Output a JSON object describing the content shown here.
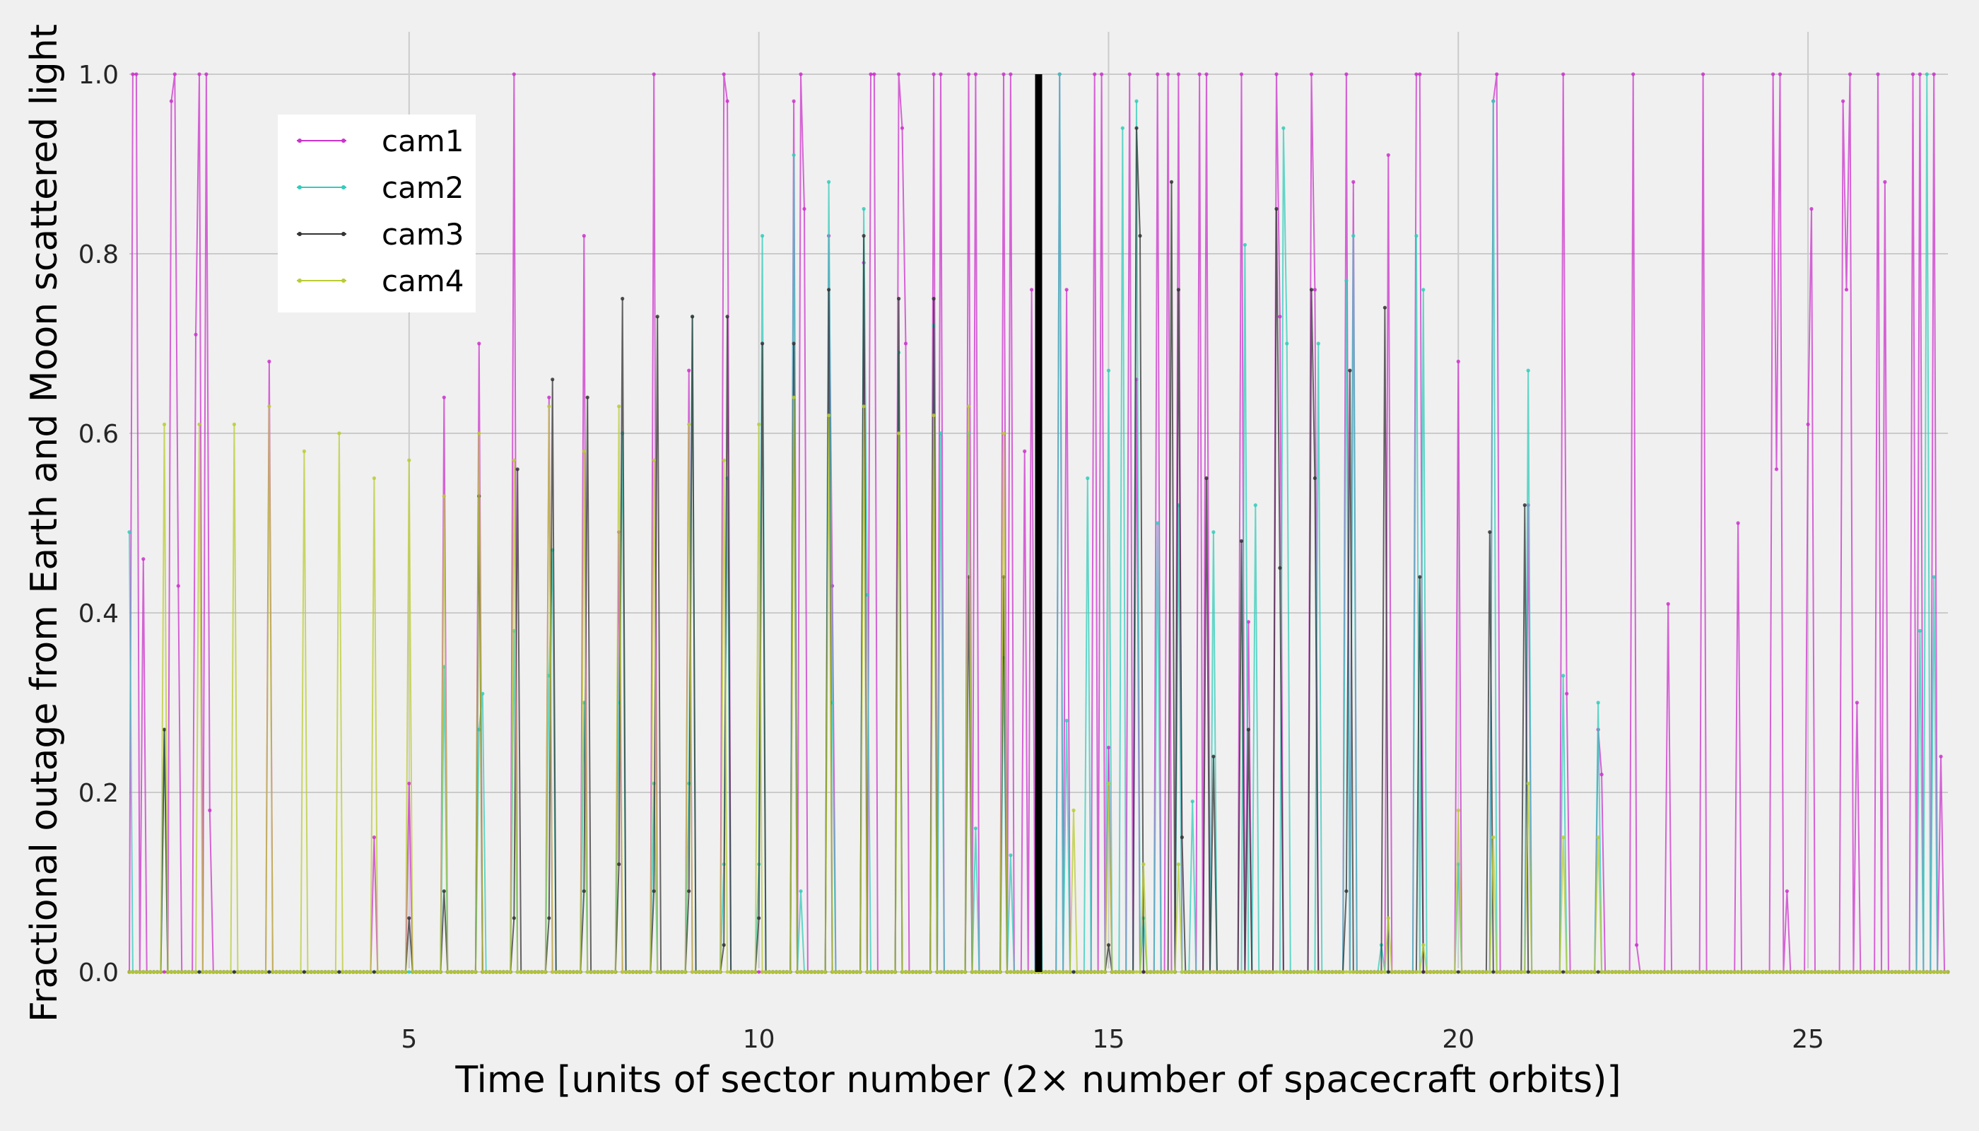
{
  "chart_data": {
    "type": "line",
    "xlabel": "Time [units of sector number (2× number of spacecraft orbits)]",
    "ylabel": "Fractional outage from Earth and Moon scattered light",
    "xlim": [
      1,
      27
    ],
    "ylim": [
      0,
      1
    ],
    "x_ticks": [
      5,
      10,
      15,
      20,
      25
    ],
    "y_ticks": [
      0.0,
      0.2,
      0.4,
      0.6,
      0.8,
      1.0
    ],
    "x_tick_labels": [
      "5",
      "10",
      "15",
      "20",
      "25"
    ],
    "y_tick_labels": [
      "0.0",
      "0.2",
      "0.4",
      "0.6",
      "0.8",
      "1.0"
    ],
    "grid": true,
    "legend_position": "upper-left",
    "annotation": {
      "type": "vertical_line",
      "x": 14,
      "color": "#000000"
    },
    "series": [
      {
        "name": "cam1",
        "color": "#cc33cc",
        "peaks": [
          [
            1.05,
            1.0
          ],
          [
            1.1,
            1.0
          ],
          [
            1.2,
            0.46
          ],
          [
            1.6,
            0.97
          ],
          [
            1.65,
            1.0
          ],
          [
            1.7,
            0.43
          ],
          [
            1.95,
            0.71
          ],
          [
            2.0,
            1.0
          ],
          [
            2.1,
            1.0
          ],
          [
            2.15,
            0.18
          ],
          [
            3.0,
            0.68
          ],
          [
            4.5,
            0.15
          ],
          [
            5.0,
            0.21
          ],
          [
            5.5,
            0.64
          ],
          [
            6.0,
            0.7
          ],
          [
            6.5,
            1.0
          ],
          [
            7.0,
            0.64
          ],
          [
            7.5,
            0.82
          ],
          [
            8.0,
            0.49
          ],
          [
            8.5,
            1.0
          ],
          [
            9.0,
            0.67
          ],
          [
            9.5,
            1.0
          ],
          [
            9.55,
            0.97
          ],
          [
            10.5,
            0.97
          ],
          [
            10.6,
            1.0
          ],
          [
            10.65,
            0.85
          ],
          [
            11.0,
            0.82
          ],
          [
            11.05,
            0.43
          ],
          [
            11.5,
            0.79
          ],
          [
            11.6,
            1.0
          ],
          [
            11.65,
            1.0
          ],
          [
            12.0,
            1.0
          ],
          [
            12.05,
            0.94
          ],
          [
            12.1,
            0.7
          ],
          [
            12.5,
            1.0
          ],
          [
            12.6,
            1.0
          ],
          [
            13.0,
            1.0
          ],
          [
            13.1,
            1.0
          ],
          [
            13.5,
            1.0
          ],
          [
            13.6,
            1.0
          ],
          [
            13.8,
            0.58
          ],
          [
            13.9,
            0.76
          ],
          [
            14.3,
            1.0
          ],
          [
            14.4,
            0.76
          ],
          [
            14.8,
            1.0
          ],
          [
            14.9,
            1.0
          ],
          [
            15.0,
            0.25
          ],
          [
            15.3,
            1.0
          ],
          [
            15.4,
            0.66
          ],
          [
            15.7,
            1.0
          ],
          [
            15.85,
            1.0
          ],
          [
            16.0,
            1.0
          ],
          [
            16.3,
            1.0
          ],
          [
            16.4,
            1.0
          ],
          [
            16.9,
            1.0
          ],
          [
            17.0,
            0.39
          ],
          [
            17.4,
            1.0
          ],
          [
            17.45,
            0.73
          ],
          [
            17.9,
            1.0
          ],
          [
            17.95,
            0.76
          ],
          [
            18.4,
            1.0
          ],
          [
            18.5,
            0.88
          ],
          [
            19.0,
            0.91
          ],
          [
            19.4,
            1.0
          ],
          [
            19.45,
            1.0
          ],
          [
            20.0,
            0.68
          ],
          [
            20.5,
            0.97
          ],
          [
            20.55,
            1.0
          ],
          [
            21.0,
            0.52
          ],
          [
            21.5,
            1.0
          ],
          [
            21.55,
            0.31
          ],
          [
            22.0,
            0.27
          ],
          [
            22.05,
            0.22
          ],
          [
            22.5,
            1.0
          ],
          [
            22.55,
            0.03
          ],
          [
            23.0,
            0.41
          ],
          [
            23.5,
            1.0
          ],
          [
            24.0,
            0.5
          ],
          [
            24.5,
            1.0
          ],
          [
            24.55,
            0.56
          ],
          [
            24.6,
            1.0
          ],
          [
            24.7,
            0.09
          ],
          [
            25.0,
            0.61
          ],
          [
            25.05,
            0.85
          ],
          [
            25.5,
            0.97
          ],
          [
            25.55,
            0.76
          ],
          [
            25.6,
            1.0
          ],
          [
            25.7,
            0.3
          ],
          [
            26.0,
            1.0
          ],
          [
            26.1,
            0.88
          ],
          [
            26.5,
            1.0
          ],
          [
            26.6,
            1.0
          ],
          [
            26.8,
            1.0
          ],
          [
            26.9,
            0.24
          ]
        ]
      },
      {
        "name": "cam2",
        "color": "#33ccbb",
        "peaks": [
          [
            1.0,
            0.49
          ],
          [
            1.5,
            0.27
          ],
          [
            5.5,
            0.34
          ],
          [
            6.0,
            0.27
          ],
          [
            6.05,
            0.31
          ],
          [
            6.5,
            0.38
          ],
          [
            7.0,
            0.33
          ],
          [
            7.05,
            0.47
          ],
          [
            7.5,
            0.3
          ],
          [
            8.0,
            0.3
          ],
          [
            8.05,
            0.6
          ],
          [
            8.5,
            0.21
          ],
          [
            9.0,
            0.21
          ],
          [
            9.05,
            0.73
          ],
          [
            9.5,
            0.12
          ],
          [
            9.55,
            0.55
          ],
          [
            10.0,
            0.12
          ],
          [
            10.05,
            0.82
          ],
          [
            10.5,
            0.91
          ],
          [
            10.6,
            0.09
          ],
          [
            11.0,
            0.88
          ],
          [
            11.05,
            0.3
          ],
          [
            11.5,
            0.85
          ],
          [
            11.55,
            0.42
          ],
          [
            12.0,
            0.69
          ],
          [
            12.5,
            0.72
          ],
          [
            12.6,
            0.6
          ],
          [
            13.0,
            0.6
          ],
          [
            13.1,
            0.16
          ],
          [
            13.5,
            0.35
          ],
          [
            13.6,
            0.13
          ],
          [
            14.0,
            0.52
          ],
          [
            14.3,
            1.0
          ],
          [
            14.4,
            0.28
          ],
          [
            14.7,
            0.55
          ],
          [
            15.0,
            0.67
          ],
          [
            15.2,
            0.94
          ],
          [
            15.4,
            0.97
          ],
          [
            15.5,
            0.06
          ],
          [
            15.7,
            0.5
          ],
          [
            16.0,
            0.52
          ],
          [
            16.2,
            0.19
          ],
          [
            16.5,
            0.49
          ],
          [
            16.95,
            0.81
          ],
          [
            17.1,
            0.52
          ],
          [
            17.5,
            0.94
          ],
          [
            17.55,
            0.7
          ],
          [
            18.0,
            0.7
          ],
          [
            18.4,
            0.77
          ],
          [
            18.5,
            0.82
          ],
          [
            18.9,
            0.03
          ],
          [
            19.4,
            0.82
          ],
          [
            19.5,
            0.76
          ],
          [
            20.0,
            0.12
          ],
          [
            20.5,
            0.97
          ],
          [
            21.0,
            0.67
          ],
          [
            21.5,
            0.33
          ],
          [
            22.0,
            0.3
          ],
          [
            26.6,
            0.38
          ],
          [
            26.7,
            1.0
          ],
          [
            26.8,
            0.44
          ]
        ]
      },
      {
        "name": "cam3",
        "color": "#333333",
        "peaks": [
          [
            1.5,
            0.27
          ],
          [
            5.0,
            0.06
          ],
          [
            5.5,
            0.09
          ],
          [
            6.0,
            0.53
          ],
          [
            6.5,
            0.06
          ],
          [
            6.55,
            0.56
          ],
          [
            7.0,
            0.06
          ],
          [
            7.05,
            0.66
          ],
          [
            7.5,
            0.09
          ],
          [
            7.55,
            0.64
          ],
          [
            8.0,
            0.12
          ],
          [
            8.05,
            0.75
          ],
          [
            8.5,
            0.09
          ],
          [
            8.55,
            0.73
          ],
          [
            9.0,
            0.09
          ],
          [
            9.05,
            0.73
          ],
          [
            9.5,
            0.03
          ],
          [
            9.55,
            0.73
          ],
          [
            10.0,
            0.06
          ],
          [
            10.05,
            0.7
          ],
          [
            10.5,
            0.7
          ],
          [
            11.0,
            0.76
          ],
          [
            11.5,
            0.82
          ],
          [
            12.0,
            0.75
          ],
          [
            12.5,
            0.75
          ],
          [
            13.0,
            0.44
          ],
          [
            13.5,
            0.44
          ],
          [
            15.0,
            0.03
          ],
          [
            15.4,
            0.94
          ],
          [
            15.45,
            0.82
          ],
          [
            15.9,
            0.88
          ],
          [
            16.0,
            0.76
          ],
          [
            16.05,
            0.15
          ],
          [
            16.4,
            0.55
          ],
          [
            16.5,
            0.24
          ],
          [
            16.9,
            0.48
          ],
          [
            17.0,
            0.27
          ],
          [
            17.4,
            0.85
          ],
          [
            17.45,
            0.45
          ],
          [
            17.9,
            0.76
          ],
          [
            17.95,
            0.55
          ],
          [
            18.4,
            0.09
          ],
          [
            18.45,
            0.67
          ],
          [
            18.95,
            0.74
          ],
          [
            19.45,
            0.44
          ],
          [
            20.45,
            0.49
          ],
          [
            20.95,
            0.52
          ]
        ]
      },
      {
        "name": "cam4",
        "color": "#bbcc33",
        "peaks": [
          [
            1.5,
            0.61
          ],
          [
            2.0,
            0.61
          ],
          [
            2.5,
            0.61
          ],
          [
            3.0,
            0.63
          ],
          [
            3.5,
            0.58
          ],
          [
            4.0,
            0.6
          ],
          [
            4.5,
            0.55
          ],
          [
            5.0,
            0.57
          ],
          [
            5.5,
            0.53
          ],
          [
            6.0,
            0.6
          ],
          [
            6.5,
            0.57
          ],
          [
            7.0,
            0.63
          ],
          [
            7.5,
            0.58
          ],
          [
            8.0,
            0.63
          ],
          [
            8.5,
            0.57
          ],
          [
            9.0,
            0.61
          ],
          [
            9.5,
            0.57
          ],
          [
            10.0,
            0.61
          ],
          [
            10.5,
            0.64
          ],
          [
            11.0,
            0.62
          ],
          [
            11.5,
            0.63
          ],
          [
            12.0,
            0.6
          ],
          [
            12.5,
            0.62
          ],
          [
            13.0,
            0.63
          ],
          [
            13.5,
            0.6
          ],
          [
            14.5,
            0.18
          ],
          [
            15.0,
            0.21
          ],
          [
            15.5,
            0.12
          ],
          [
            16.0,
            0.12
          ],
          [
            19.0,
            0.06
          ],
          [
            19.5,
            0.03
          ],
          [
            20.0,
            0.18
          ],
          [
            20.5,
            0.15
          ],
          [
            21.0,
            0.21
          ],
          [
            21.5,
            0.15
          ],
          [
            22.0,
            0.15
          ]
        ]
      }
    ]
  }
}
